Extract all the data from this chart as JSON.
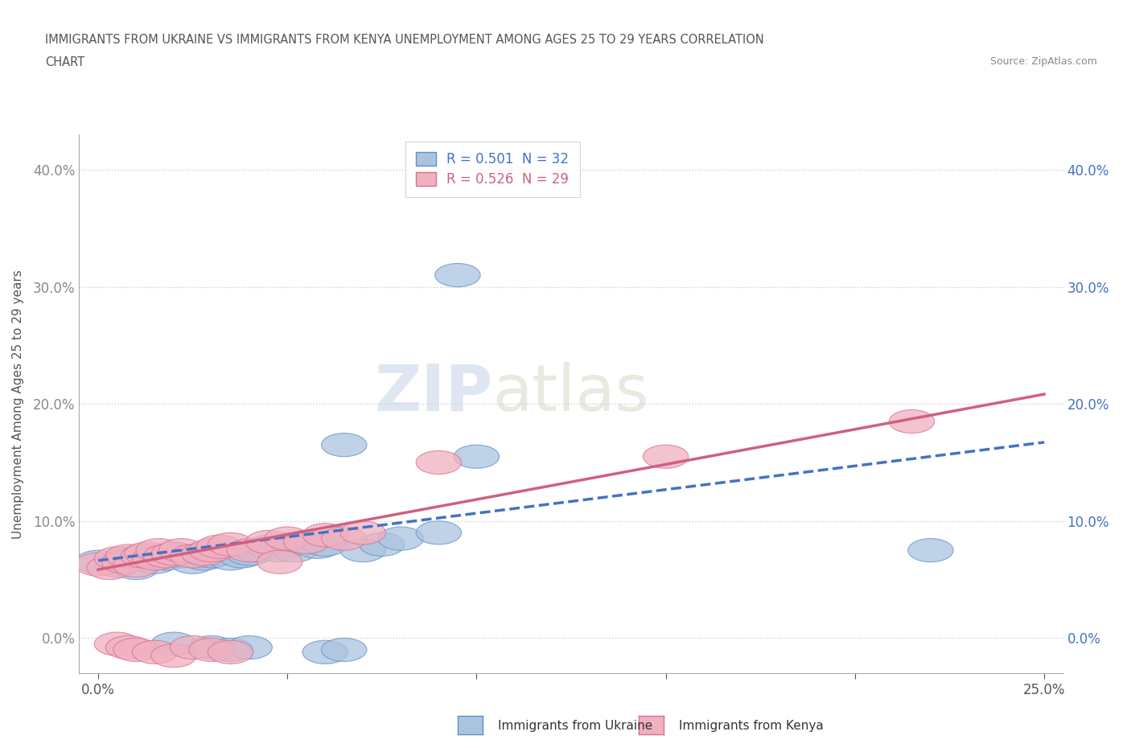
{
  "title_line1": "IMMIGRANTS FROM UKRAINE VS IMMIGRANTS FROM KENYA UNEMPLOYMENT AMONG AGES 25 TO 29 YEARS CORRELATION",
  "title_line2": "CHART",
  "source": "Source: ZipAtlas.com",
  "ylabel_ticks_left": [
    "0.0%",
    "10.0%",
    "20.0%",
    "30.0%",
    "40.0%"
  ],
  "ylabel_ticks_right": [
    "0.0%",
    "10.0%",
    "20.0%",
    "30.0%",
    "40.0%"
  ],
  "ylabel_label": "Unemployment Among Ages 25 to 29 years",
  "legend_ukraine": "R = 0.501  N = 32",
  "legend_kenya": "R = 0.526  N = 29",
  "ukraine_color": "#aac4e0",
  "ukraine_edge_color": "#6090c8",
  "ukraine_line_color": "#4472c4",
  "kenya_color": "#f0b0c0",
  "kenya_edge_color": "#d87090",
  "kenya_line_color": "#d06080",
  "watermark_zip": "ZIP",
  "watermark_atlas": "atlas",
  "xlim": [
    -0.005,
    0.255
  ],
  "ylim": [
    -0.03,
    0.43
  ],
  "ytick_vals": [
    0.0,
    0.1,
    0.2,
    0.3,
    0.4
  ],
  "xtick_vals": [
    0.0,
    0.05,
    0.1,
    0.15,
    0.2,
    0.25
  ],
  "ukraine_scatter_x": [
    0.0,
    0.005,
    0.008,
    0.01,
    0.012,
    0.015,
    0.018,
    0.02,
    0.022,
    0.025,
    0.028,
    0.03,
    0.032,
    0.035,
    0.038,
    0.04,
    0.042,
    0.045,
    0.048,
    0.05,
    0.052,
    0.055,
    0.058,
    0.06,
    0.065,
    0.07,
    0.075,
    0.08,
    0.09,
    0.095,
    0.1,
    0.22
  ],
  "ukraine_scatter_y": [
    0.065,
    0.062,
    0.068,
    0.06,
    0.07,
    0.065,
    0.068,
    0.072,
    0.07,
    0.065,
    0.068,
    0.07,
    0.072,
    0.068,
    0.07,
    0.072,
    0.075,
    0.078,
    0.075,
    0.08,
    0.075,
    0.082,
    0.078,
    0.08,
    0.165,
    0.075,
    0.08,
    0.085,
    0.09,
    0.31,
    0.155,
    0.075
  ],
  "kenya_scatter_x": [
    0.0,
    0.003,
    0.005,
    0.007,
    0.008,
    0.01,
    0.012,
    0.013,
    0.015,
    0.016,
    0.018,
    0.02,
    0.022,
    0.025,
    0.028,
    0.03,
    0.032,
    0.035,
    0.04,
    0.045,
    0.048,
    0.05,
    0.055,
    0.06,
    0.065,
    0.07,
    0.09,
    0.15,
    0.215
  ],
  "kenya_scatter_y": [
    0.063,
    0.06,
    0.068,
    0.065,
    0.07,
    0.062,
    0.07,
    0.072,
    0.068,
    0.075,
    0.07,
    0.072,
    0.075,
    0.07,
    0.072,
    0.075,
    0.078,
    0.08,
    0.075,
    0.082,
    0.065,
    0.085,
    0.082,
    0.088,
    0.085,
    0.09,
    0.15,
    0.155,
    0.185
  ],
  "ukraine_below_x": [
    0.02,
    0.03,
    0.035,
    0.04,
    0.06,
    0.065
  ],
  "ukraine_below_y": [
    -0.005,
    -0.008,
    -0.01,
    -0.008,
    -0.012,
    -0.01
  ],
  "kenya_below_x": [
    0.005,
    0.008,
    0.01,
    0.015,
    0.02,
    0.025,
    0.03,
    0.035
  ],
  "kenya_below_y": [
    -0.005,
    -0.008,
    -0.01,
    -0.012,
    -0.015,
    -0.008,
    -0.01,
    -0.012
  ]
}
